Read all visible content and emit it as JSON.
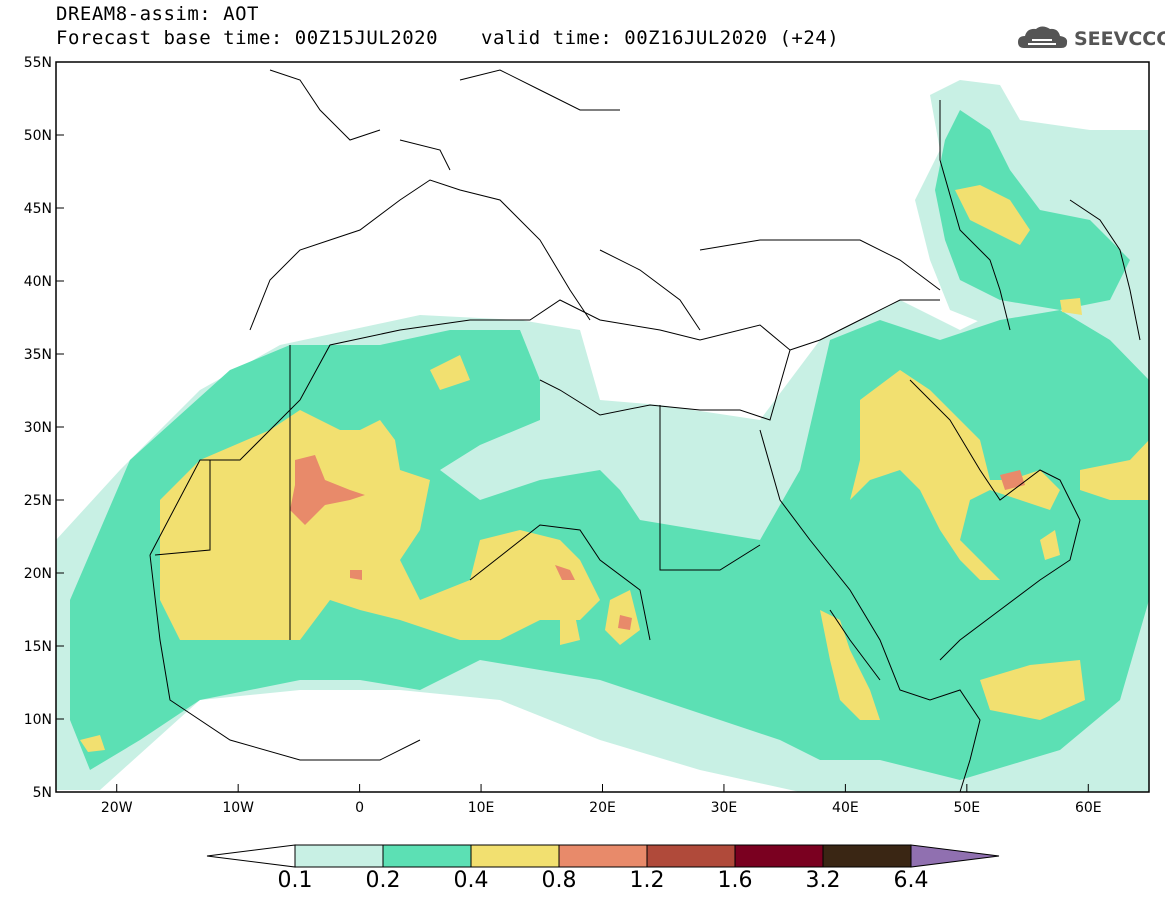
{
  "title": {
    "line1": "DREAM8-assim: AOT",
    "line2": "Forecast base time: 00Z15JUL2020",
    "valid": "valid time: 00Z16JUL2020 (+24)"
  },
  "logo": {
    "text": "SEEVCCC",
    "icon": "cloud-icon"
  },
  "map": {
    "lon_range": [
      -25,
      65
    ],
    "lat_range": [
      5,
      55
    ],
    "lat_ticks": [
      "55N",
      "50N",
      "45N",
      "40N",
      "35N",
      "30N",
      "25N",
      "20N",
      "15N",
      "10N",
      "5N"
    ],
    "lon_ticks": [
      "20W",
      "10W",
      "0",
      "10E",
      "20E",
      "30E",
      "40E",
      "50E",
      "60E"
    ],
    "colors": {
      "c01": "#c8f0e4",
      "c02": "#5ce0b4",
      "c04": "#f2e070",
      "c08": "#e88a6a",
      "c12": "#b04a3a",
      "c16": "#7a0020",
      "c32": "#3a2614",
      "c64": "#9070b0"
    }
  },
  "colorbar": {
    "labels": [
      "0.1",
      "0.2",
      "0.4",
      "0.8",
      "1.2",
      "1.6",
      "3.2",
      "6.4"
    ],
    "colors": [
      "#c8f0e4",
      "#5ce0b4",
      "#f2e070",
      "#e88a6a",
      "#b04a3a",
      "#7a0020",
      "#3a2614"
    ],
    "under_color": "#ffffff",
    "over_color": "#9070b0"
  }
}
